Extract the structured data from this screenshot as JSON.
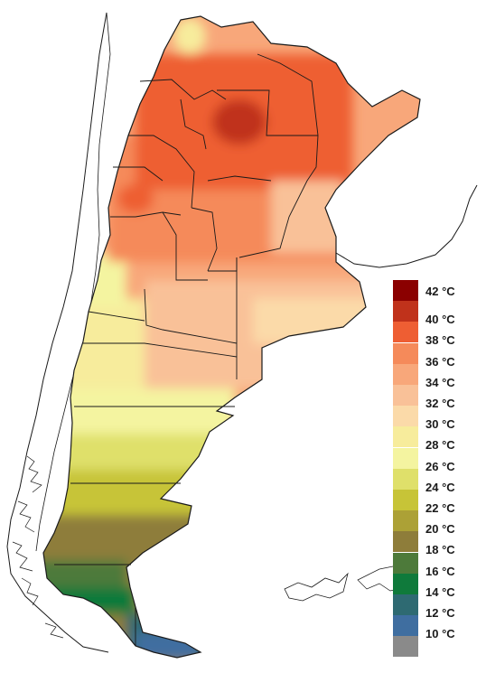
{
  "legend": {
    "items": [
      {
        "label": "42 °C",
        "color": "#8b0000"
      },
      {
        "label": "40 °C",
        "color": "#c0321b"
      },
      {
        "label": "38 °C",
        "color": "#ee5e33"
      },
      {
        "label": "36 °C",
        "color": "#f58a5a"
      },
      {
        "label": "34 °C",
        "color": "#f8a77a"
      },
      {
        "label": "32 °C",
        "color": "#f9c198"
      },
      {
        "label": "30 °C",
        "color": "#fbdaa9"
      },
      {
        "label": "28 °C",
        "color": "#f7ec9c"
      },
      {
        "label": "26 °C",
        "color": "#f4f4a0"
      },
      {
        "label": "24 °C",
        "color": "#dfe06a"
      },
      {
        "label": "22 °C",
        "color": "#c7c437"
      },
      {
        "label": "20 °C",
        "color": "#aca136"
      },
      {
        "label": "18 °C",
        "color": "#8e7d3a"
      },
      {
        "label": "16 °C",
        "color": "#4d7a3a"
      },
      {
        "label": "14 °C",
        "color": "#0f7a3b"
      },
      {
        "label": "12 °C",
        "color": "#2e6a72"
      },
      {
        "label": "10 °C",
        "color": "#3f6ea0"
      },
      {
        "label": "",
        "color": "#8a8a8a"
      }
    ]
  },
  "colors": {
    "boundary": "#1a1a1a",
    "background": "#ffffff"
  }
}
